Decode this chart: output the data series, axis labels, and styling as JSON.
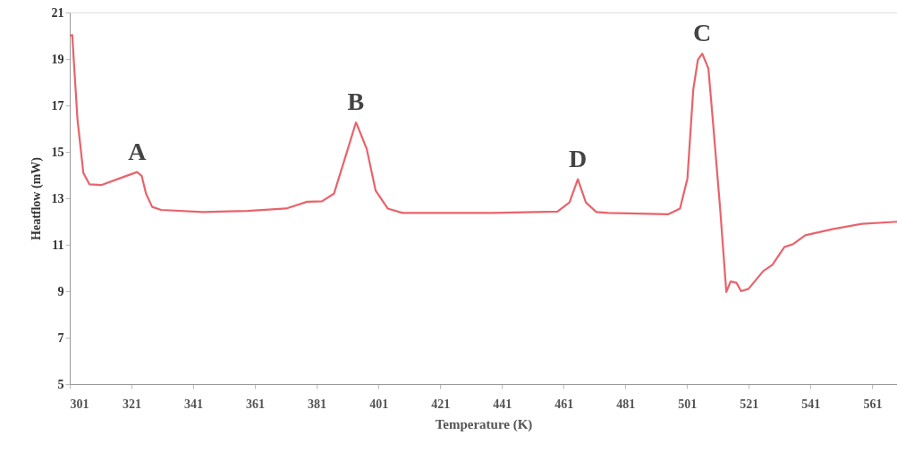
{
  "chart_data": {
    "type": "line",
    "xlabel": "Temperature (K)",
    "ylabel": "Heatflow (mW)",
    "xlim": [
      301,
      569
    ],
    "xticks": [
      301,
      321,
      341,
      361,
      381,
      401,
      421,
      441,
      461,
      481,
      501,
      521,
      541,
      561
    ],
    "ylim": [
      5,
      21
    ],
    "yticks": [
      5,
      7,
      9,
      11,
      13,
      15,
      17,
      19,
      21
    ],
    "grid": false,
    "marker": "none",
    "line_style": "solid",
    "series": [
      {
        "color": "#e8636b",
        "x": [
          301,
          301.8,
          303.5,
          305.4,
          307.4,
          311.2,
          317,
          322.8,
          324.3,
          325.7,
          327.7,
          330.6,
          344.1,
          358.6,
          371.1,
          377.9,
          382.7,
          386.6,
          390.5,
          393.7,
          393.9,
          397.2,
          400.1,
          404,
          408.8,
          437.8,
          459,
          462.9,
          465.6,
          468.2,
          471.6,
          475.5,
          494.8,
          498.7,
          501.1,
          503,
          504.5,
          505.9,
          507.9,
          509.3,
          511.7,
          513.7,
          515.1,
          517,
          518.5,
          520.9,
          525.7,
          528.6,
          532.5,
          535.4,
          539.3,
          548,
          557.6,
          569
        ],
        "values": [
          20,
          20.03,
          16.4,
          14.1,
          13.6,
          13.57,
          13.85,
          14.13,
          13.97,
          13.2,
          12.63,
          12.5,
          12.41,
          12.46,
          12.56,
          12.85,
          12.87,
          13.2,
          14.87,
          16.26,
          16.22,
          15.13,
          13.33,
          12.56,
          12.37,
          12.37,
          12.43,
          12.82,
          13.82,
          12.82,
          12.41,
          12.37,
          12.31,
          12.56,
          13.85,
          17.69,
          18.97,
          19.23,
          18.59,
          16.41,
          12.56,
          8.97,
          9.42,
          9.36,
          9.0,
          9.1,
          9.87,
          10.13,
          10.9,
          11.03,
          11.41,
          11.67,
          11.9,
          11.99
        ]
      }
    ],
    "annotations": [
      {
        "text": "A",
        "x": 322.8,
        "y": 14.13
      },
      {
        "text": "B",
        "x": 393.7,
        "y": 16.26
      },
      {
        "text": "D",
        "x": 465.6,
        "y": 13.82
      },
      {
        "text": "C",
        "x": 505.9,
        "y": 19.23
      }
    ]
  }
}
